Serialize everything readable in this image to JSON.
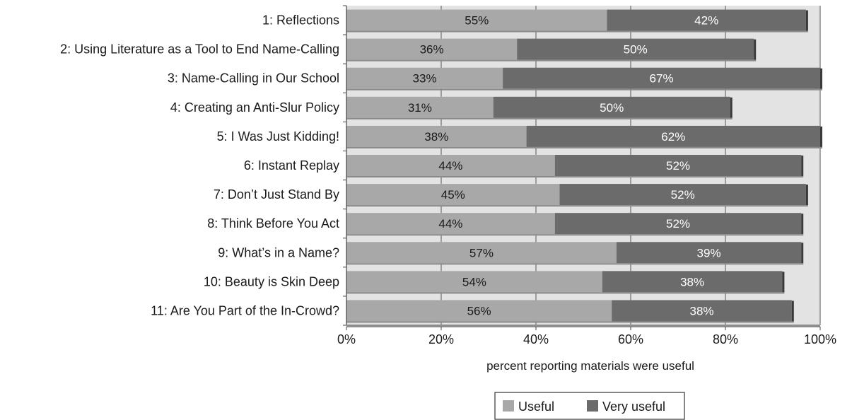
{
  "chart_data": {
    "type": "bar",
    "orientation": "horizontal",
    "stacked": true,
    "categories": [
      "1: Reflections",
      "2: Using Literature as a Tool to End Name-Calling",
      "3: Name-Calling in Our School",
      "4: Creating an Anti-Slur Policy",
      "5: I Was Just Kidding!",
      "6: Instant Replay",
      "7: Don’t Just Stand By",
      "8: Think Before You Act",
      "9: What’s in a Name?",
      "10: Beauty is Skin Deep",
      "11: Are You Part of the In-Crowd?"
    ],
    "series": [
      {
        "name": "Useful",
        "color": "#a8a8a8",
        "label_color": "#1a1a1a",
        "values": [
          55,
          36,
          33,
          31,
          38,
          44,
          45,
          44,
          57,
          54,
          56
        ]
      },
      {
        "name": "Very useful",
        "color": "#6b6b6b",
        "label_color": "#ffffff",
        "values": [
          42,
          50,
          67,
          50,
          62,
          52,
          52,
          52,
          39,
          38,
          38
        ]
      }
    ],
    "xlabel": "percent reporting materials were useful",
    "xlim": [
      0,
      100
    ],
    "xticks": [
      0,
      20,
      40,
      60,
      80,
      100
    ],
    "xtick_labels": [
      "0%",
      "20%",
      "40%",
      "60%",
      "80%",
      "100%"
    ],
    "value_format": "percent",
    "grid": "vertical",
    "plot_background": "#e3e3e3",
    "legend_position": "bottom-center"
  }
}
